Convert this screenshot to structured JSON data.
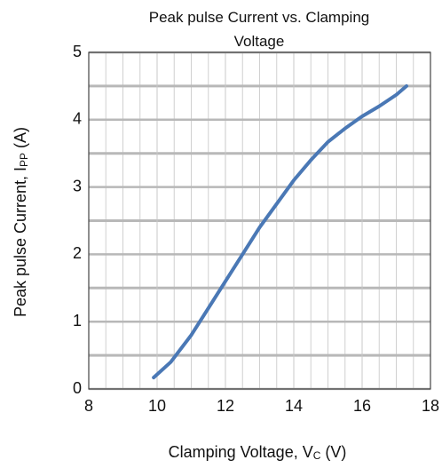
{
  "chart_data": {
    "type": "line",
    "title": "Peak pulse Current vs. Clamping Voltage",
    "xlabel": [
      "Clamping Voltage, V",
      "C",
      " (V)"
    ],
    "ylabel": [
      "Peak pulse Current, I",
      "PP",
      " (A)"
    ],
    "x": [
      9.9,
      10.4,
      11,
      11.5,
      12,
      12.5,
      13,
      13.5,
      14,
      14.5,
      15,
      15.5,
      16,
      16.5,
      17,
      17.3
    ],
    "series": [
      {
        "color": "#4a78b5",
        "values": [
          0.17,
          0.4,
          0.8,
          1.2,
          1.6,
          2.0,
          2.4,
          2.75,
          3.1,
          3.4,
          3.67,
          3.87,
          4.05,
          4.2,
          4.37,
          4.5
        ]
      }
    ],
    "xlim": [
      8,
      18
    ],
    "xticks": [
      8,
      10,
      12,
      14,
      16,
      18
    ],
    "xminorticks": [
      8.5,
      9,
      9.5,
      10.5,
      11,
      11.5,
      12.5,
      13,
      13.5,
      14.5,
      15,
      15.5,
      16.5,
      17,
      17.5
    ],
    "ylim": [
      0,
      5
    ],
    "yticks": [
      0,
      1,
      2,
      3,
      4,
      5
    ],
    "yminorticks": [
      0.5,
      1.5,
      2.5,
      3.5,
      4.5
    ],
    "grid": true
  }
}
